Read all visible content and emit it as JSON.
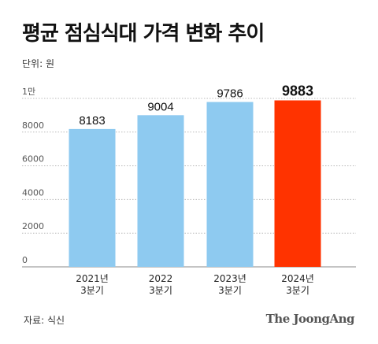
{
  "header": {
    "title": "평균 점심식대 가격 변화 추이",
    "unit": "단위: 원"
  },
  "footer": {
    "source": "자료: 식신",
    "brand": "The JoongAng"
  },
  "colors": {
    "bar": "#8ECAF0",
    "highlight": "#FF3300",
    "grid": "#BBBBBB"
  },
  "chart_data": {
    "type": "bar",
    "title": "평균 점심식대 가격 변화 추이",
    "ylabel": "단위: 원",
    "xlabel": "",
    "categories": [
      [
        "2021년",
        "3분기"
      ],
      [
        "2022",
        "3분기"
      ],
      [
        "2023년",
        "3분기"
      ],
      [
        "2024년",
        "3분기"
      ]
    ],
    "values": [
      8183,
      9004,
      9786,
      9883
    ],
    "highlight_index": 3,
    "ylim": [
      0,
      10000
    ],
    "yticks": [
      0,
      2000,
      4000,
      6000,
      8000,
      10000
    ],
    "ytick_labels": [
      "0",
      "2000",
      "4000",
      "6000",
      "8000",
      "1만"
    ],
    "grid": true,
    "legend": "none"
  }
}
